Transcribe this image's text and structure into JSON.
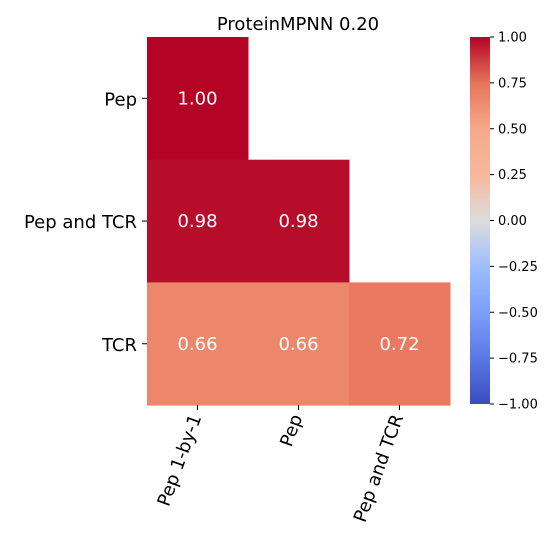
{
  "chart_data": {
    "type": "heatmap",
    "title": "ProteinMPNN 0.20",
    "row_labels": [
      "Pep",
      "Pep and TCR",
      "TCR"
    ],
    "col_labels": [
      "Pep 1-by-1",
      "Pep",
      "Pep and TCR"
    ],
    "values": [
      [
        1.0,
        null,
        null
      ],
      [
        0.98,
        0.98,
        null
      ],
      [
        0.66,
        0.66,
        0.72
      ]
    ],
    "value_format": "2dp",
    "colormap": "coolwarm",
    "vmin": -1.0,
    "vmax": 1.0,
    "colorbar_ticks": [
      "1.00",
      "0.75",
      "0.50",
      "0.25",
      "0.00",
      "−0.25",
      "−0.50",
      "−0.75",
      "−1.00"
    ],
    "colorbar_tick_values": [
      1.0,
      0.75,
      0.5,
      0.25,
      0.0,
      -0.25,
      -0.5,
      -0.75,
      -1.0
    ],
    "masked": "upper-triangle",
    "legend_position": "right"
  }
}
